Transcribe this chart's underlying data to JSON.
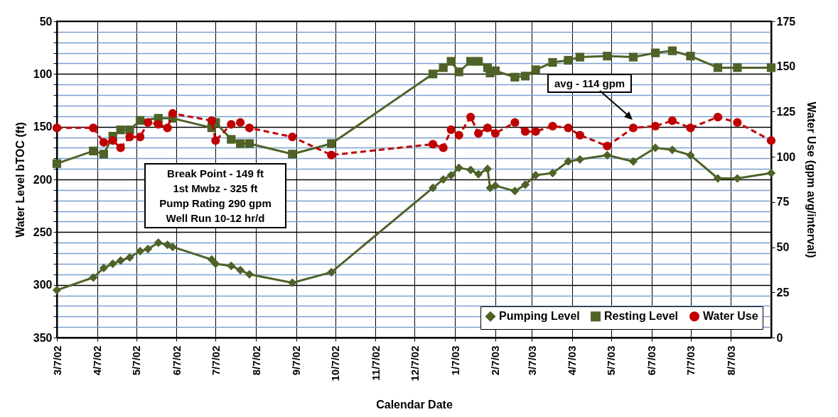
{
  "chart_data": {
    "type": "line",
    "xlabel": "Calendar Date",
    "ylabel": "Water Level bTOC (ft)",
    "y2label": "Water Use (gpm avg/interval)",
    "xlim": [
      "2002-03-07",
      "2003-09-07"
    ],
    "xticks": [
      {
        "value": "2002-03-07",
        "label": "3/7/02"
      },
      {
        "value": "2002-04-07",
        "label": "4/7/02"
      },
      {
        "value": "2002-05-07",
        "label": "5/7/02"
      },
      {
        "value": "2002-06-07",
        "label": "6/7/02"
      },
      {
        "value": "2002-07-07",
        "label": "7/7/02"
      },
      {
        "value": "2002-08-07",
        "label": "8/7/02"
      },
      {
        "value": "2002-09-07",
        "label": "9/7/02"
      },
      {
        "value": "2002-10-07",
        "label": "10/7/02"
      },
      {
        "value": "2002-11-07",
        "label": "11/7/02"
      },
      {
        "value": "2002-12-07",
        "label": "12/7/02"
      },
      {
        "value": "2003-01-07",
        "label": "1/7/03"
      },
      {
        "value": "2003-02-07",
        "label": "2/7/03"
      },
      {
        "value": "2003-03-07",
        "label": "3/7/03"
      },
      {
        "value": "2003-04-07",
        "label": "4/7/03"
      },
      {
        "value": "2003-05-07",
        "label": "5/7/03"
      },
      {
        "value": "2003-06-07",
        "label": "6/7/03"
      },
      {
        "value": "2003-07-07",
        "label": "7/7/03"
      },
      {
        "value": "2003-08-07",
        "label": "8/7/03"
      }
    ],
    "ylim": [
      350,
      50
    ],
    "yticks": [
      50,
      {
        "value": 60,
        "label": null
      },
      {
        "value": 70,
        "label": null
      },
      {
        "value": 80,
        "label": null
      },
      {
        "value": 90,
        "label": null
      },
      100,
      {
        "value": 110,
        "label": null
      },
      {
        "value": 120,
        "label": null
      },
      {
        "value": 130,
        "label": null
      },
      {
        "value": 140,
        "label": null
      },
      150,
      {
        "value": 160,
        "label": null
      },
      {
        "value": 170,
        "label": null
      },
      {
        "value": 180,
        "label": null
      },
      {
        "value": 190,
        "label": null
      },
      200,
      {
        "value": 210,
        "label": null
      },
      {
        "value": 220,
        "label": null
      },
      {
        "value": 230,
        "label": null
      },
      {
        "value": 240,
        "label": null
      },
      250,
      {
        "value": 260,
        "label": null
      },
      {
        "value": 270,
        "label": null
      },
      {
        "value": 280,
        "label": null
      },
      {
        "value": 290,
        "label": null
      },
      300,
      {
        "value": 310,
        "label": null
      },
      {
        "value": 320,
        "label": null
      },
      {
        "value": 330,
        "label": null
      },
      {
        "value": 340,
        "label": null
      },
      350
    ],
    "y2lim": [
      0,
      175
    ],
    "y2ticks": [
      0,
      25,
      50,
      75,
      100,
      125,
      150,
      175
    ],
    "grid": true,
    "legend": "bottom right",
    "annotations": [
      "Break Point - 149 ft",
      "1st Mwbz - 325 ft",
      "Pump Rating 290 gpm",
      "Well Run 10-12 hr/d",
      "avg -  114 gpm"
    ],
    "series": [
      {
        "name": "Pumping Level",
        "color": "#4f6228",
        "marker": "diamond",
        "line_style": "solid",
        "x": [
          "2002-03-07",
          "2002-04-04",
          "2002-04-12",
          "2002-04-19",
          "2002-04-25",
          "2002-05-02",
          "2002-05-10",
          "2002-05-16",
          "2002-05-24",
          "2002-05-31",
          "2002-06-04",
          "2002-07-04",
          "2002-07-07",
          "2002-07-19",
          "2002-07-26",
          "2002-08-02",
          "2002-09-04",
          "2002-10-04",
          "2002-12-21",
          "2002-12-29",
          "2003-01-04",
          "2003-01-10",
          "2003-01-19",
          "2003-01-25",
          "2003-02-01",
          "2003-02-03",
          "2003-02-07",
          "2003-02-22",
          "2003-03-02",
          "2003-03-10",
          "2003-03-23",
          "2003-04-04",
          "2003-04-13",
          "2003-05-04",
          "2003-05-24",
          "2003-06-10",
          "2003-06-23",
          "2003-07-07",
          "2003-07-28",
          "2003-08-12",
          "2003-09-07"
        ],
        "values": [
          305,
          293,
          284,
          280,
          277,
          274,
          268,
          266,
          260,
          262,
          264,
          276,
          280,
          282,
          286,
          290,
          298,
          288,
          208,
          200,
          196,
          189,
          191,
          195,
          190,
          208,
          206,
          211,
          205,
          196,
          194,
          183,
          181,
          177,
          183,
          170,
          172,
          177,
          199,
          199,
          194
        ]
      },
      {
        "name": "Resting Level",
        "color": "#4f6228",
        "marker": "square",
        "line_style": "solid",
        "x": [
          "2002-03-07",
          "2002-04-04",
          "2002-04-12",
          "2002-04-19",
          "2002-04-25",
          "2002-05-02",
          "2002-05-10",
          "2002-05-24",
          "2002-06-04",
          "2002-07-04",
          "2002-07-07",
          "2002-07-19",
          "2002-07-26",
          "2002-08-02",
          "2002-09-04",
          "2002-10-04",
          "2002-12-21",
          "2002-12-29",
          "2003-01-04",
          "2003-01-10",
          "2003-01-19",
          "2003-01-25",
          "2003-02-01",
          "2003-02-03",
          "2003-02-07",
          "2003-02-22",
          "2003-03-02",
          "2003-03-10",
          "2003-03-23",
          "2003-04-04",
          "2003-04-13",
          "2003-05-04",
          "2003-05-24",
          "2003-06-10",
          "2003-06-23",
          "2003-07-07",
          "2003-07-28",
          "2003-08-12",
          "2003-09-07"
        ],
        "values": [
          185,
          173,
          176,
          159,
          153,
          153,
          144,
          142,
          142,
          151,
          146,
          162,
          166,
          166,
          176,
          166,
          100,
          94,
          88,
          98,
          88,
          88,
          94,
          99,
          97,
          103,
          102,
          96,
          89,
          87,
          84,
          83,
          84,
          80,
          78,
          83,
          94,
          94,
          94
        ]
      },
      {
        "name": "Water Use",
        "color": "#c00000",
        "marker": "circle",
        "line_style": "dashed",
        "axis": "y2",
        "x": [
          "2002-03-07",
          "2002-04-04",
          "2002-04-12",
          "2002-04-19",
          "2002-04-25",
          "2002-05-02",
          "2002-05-10",
          "2002-05-16",
          "2002-05-24",
          "2002-05-31",
          "2002-06-04",
          "2002-07-04",
          "2002-07-07",
          "2002-07-19",
          "2002-07-26",
          "2002-08-02",
          "2002-09-04",
          "2002-10-04",
          "2002-12-21",
          "2002-12-29",
          "2003-01-04",
          "2003-01-10",
          "2003-01-19",
          "2003-01-25",
          "2003-02-01",
          "2003-02-07",
          "2003-02-22",
          "2003-03-02",
          "2003-03-10",
          "2003-03-23",
          "2003-04-04",
          "2003-04-13",
          "2003-05-04",
          "2003-05-24",
          "2003-06-10",
          "2003-06-23",
          "2003-07-07",
          "2003-07-28",
          "2003-08-12",
          "2003-09-07"
        ],
        "values": [
          116,
          116,
          108,
          109,
          105,
          111,
          111,
          119,
          118,
          116,
          124,
          120,
          109,
          118,
          119,
          116,
          111,
          101,
          107,
          105,
          115,
          112,
          122,
          113,
          116,
          113,
          119,
          114,
          114,
          117,
          116,
          112,
          106,
          116,
          117,
          120,
          116,
          122,
          119,
          109
        ]
      }
    ]
  }
}
